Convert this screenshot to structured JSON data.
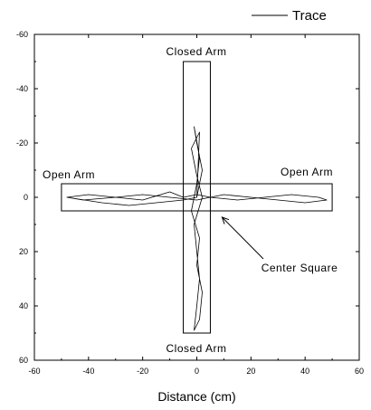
{
  "chart_data": {
    "type": "line",
    "xlabel": "Distance (cm)",
    "ylabel": "",
    "xlim": [
      -60,
      60
    ],
    "ylim": [
      60,
      -60
    ],
    "y_axis_inverted": true,
    "x_ticks": [
      -60,
      -40,
      -20,
      0,
      20,
      40,
      60
    ],
    "y_ticks": [
      -60,
      -40,
      -20,
      0,
      20,
      40,
      60
    ],
    "grid": false,
    "legend": {
      "placement": "top-right",
      "entries": [
        "Trace"
      ]
    },
    "regions": [
      {
        "name": "Closed Arm",
        "x": [
          -5,
          5
        ],
        "y": [
          -50,
          50
        ]
      },
      {
        "name": "Open Arm",
        "x": [
          -50,
          50
        ],
        "y": [
          -5,
          5
        ]
      }
    ],
    "annotations": [
      {
        "text": "Closed Arm",
        "position": "top"
      },
      {
        "text": "Closed Arm",
        "position": "bottom"
      },
      {
        "text": "Open Arm",
        "position": "left"
      },
      {
        "text": "Open Arm",
        "position": "right"
      },
      {
        "text": "Center Square",
        "points_to": [
          8,
          6
        ]
      }
    ],
    "series": [
      {
        "name": "Trace",
        "x": [
          -48,
          -40,
          -30,
          -20,
          -10,
          -5,
          0,
          5,
          15,
          25,
          35,
          45,
          48,
          40,
          30,
          20,
          10,
          5,
          0,
          -10,
          -20,
          -30,
          -42,
          -48,
          -35,
          -25,
          -15,
          -5,
          0,
          2,
          0,
          -1,
          1,
          0,
          -2,
          1,
          0,
          2,
          1,
          -1,
          0,
          1,
          0,
          -1,
          2,
          0,
          -2,
          1,
          0
        ],
        "y": [
          0,
          -1,
          0,
          1,
          -2,
          0,
          -1,
          0,
          1,
          0,
          -1,
          0,
          1,
          2,
          1,
          0,
          -1,
          0,
          1,
          0,
          -1,
          0,
          1,
          0,
          2,
          3,
          2,
          1,
          0,
          -10,
          -20,
          -26,
          -15,
          -5,
          5,
          15,
          25,
          35,
          45,
          49,
          40,
          30,
          20,
          10,
          0,
          -8,
          -18,
          -24,
          0
        ]
      }
    ]
  }
}
